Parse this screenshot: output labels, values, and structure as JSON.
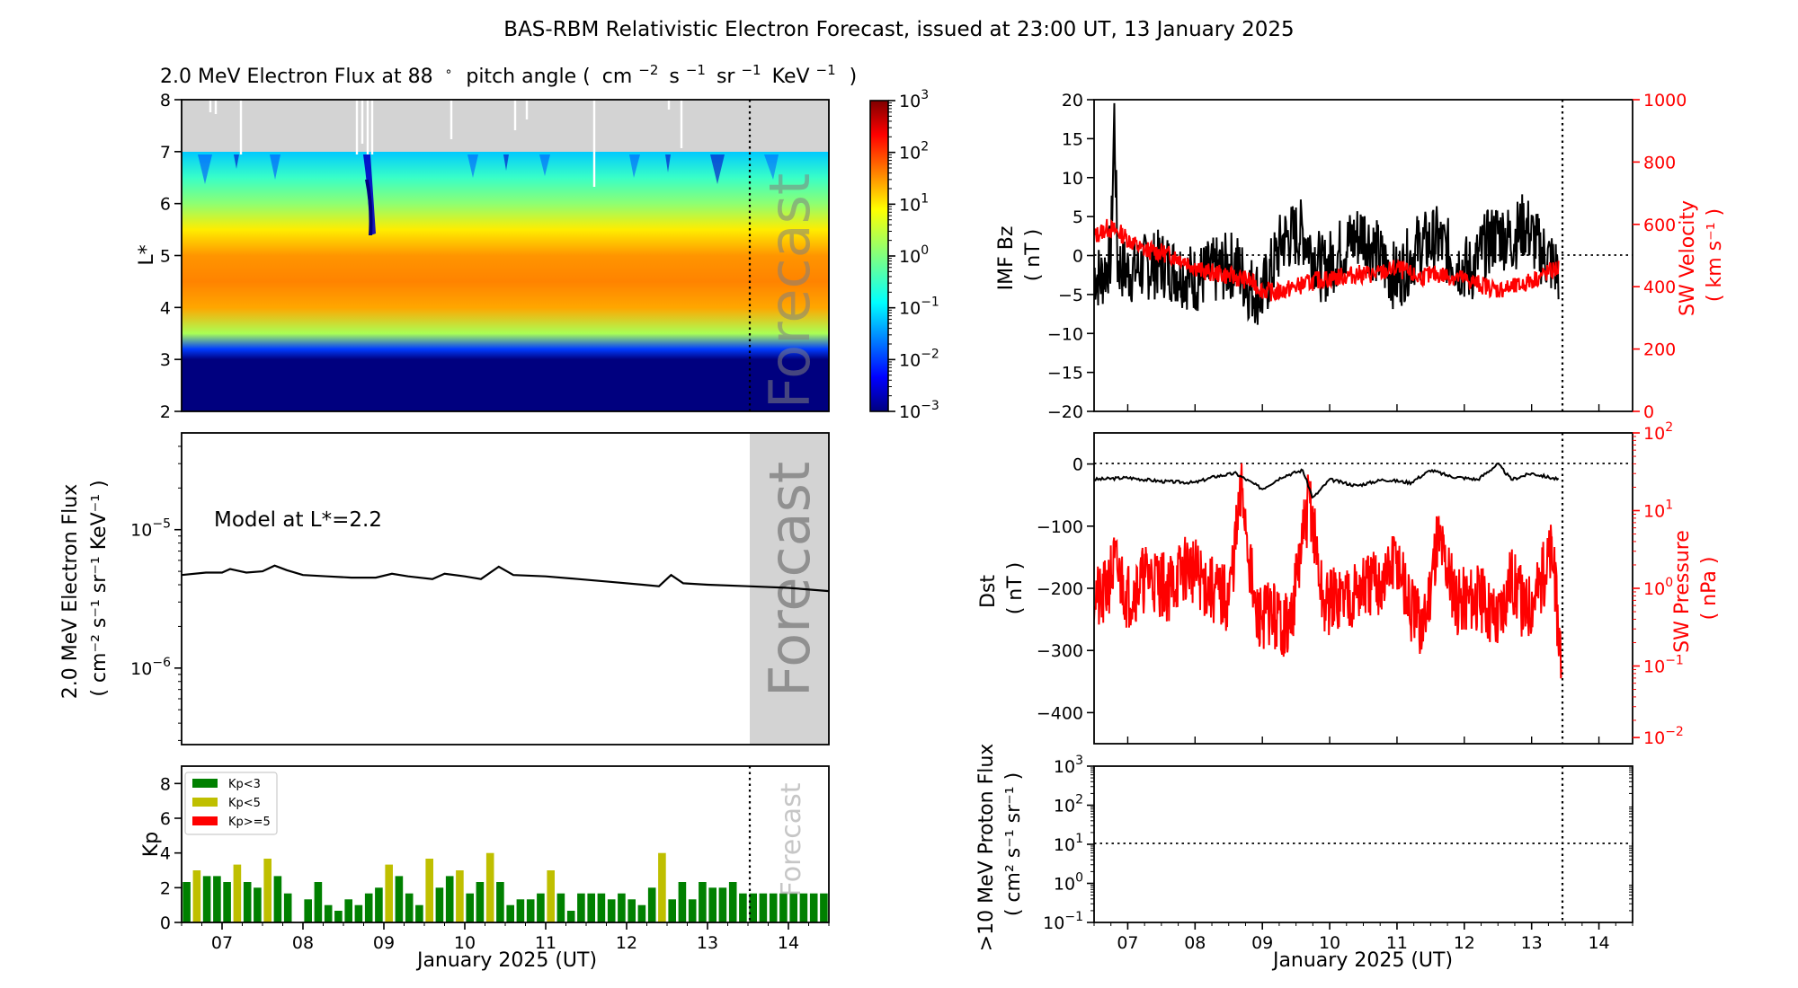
{
  "title": "BAS-RBM Relativistic Electron Forecast, issued at 23:00 UT, 13 January 2025",
  "colors": {
    "black": "#000000",
    "red": "#ff0000",
    "forecast_gray": "#d3d3d3",
    "kp_green": "#008000",
    "kp_yellow": "#bfbf00",
    "kp_red": "#ff0000"
  },
  "chart_data": [
    {
      "id": "flux-map",
      "type": "heatmap",
      "title_main": "2.0 MeV Electron Flux at 88",
      "title_deg": "∘",
      "title_units_parts": [
        "pitch angle (",
        "cm",
        "−2",
        "s",
        "−1",
        "sr",
        "−1",
        "KeV",
        "−1",
        ")"
      ],
      "ylabel": "L*",
      "ylim": [
        2,
        8
      ],
      "yticks": [
        "2",
        "3",
        "4",
        "5",
        "6",
        "7",
        "8"
      ],
      "forecast_label": "Forecast",
      "colorbar": {
        "scale": "log",
        "range": [
          0.001,
          1000
        ],
        "ticks": [
          {
            "base": "10",
            "exp": "−3"
          },
          {
            "base": "10",
            "exp": "−2"
          },
          {
            "base": "10",
            "exp": "−1"
          },
          {
            "base": "10",
            "exp": "0"
          },
          {
            "base": "10",
            "exp": "1"
          },
          {
            "base": "10",
            "exp": "2"
          },
          {
            "base": "10",
            "exp": "3"
          }
        ]
      },
      "profile_L": [
        2,
        3.0,
        3.2,
        3.5,
        4.0,
        4.5,
        5.0,
        5.5,
        6.0,
        6.5,
        7.0
      ],
      "profile_log10_flux": [
        -3,
        -3,
        -2,
        0.3,
        1.4,
        1.6,
        1.5,
        1.0,
        0.1,
        -0.5,
        -1.2
      ]
    },
    {
      "id": "model-flux",
      "type": "line",
      "ylabel_lines": [
        "2.0 MeV Electron Flux",
        "( cm⁻² s⁻¹ sr⁻¹ KeV⁻¹ )"
      ],
      "annotation": "Model at L*=2.2",
      "forecast_label": "Forecast",
      "yscale": "log",
      "ylim": [
        2.8e-07,
        5e-05
      ],
      "yticks": [
        {
          "base": "10",
          "exp": "−5"
        },
        {
          "base": "10",
          "exp": "−6"
        }
      ],
      "x": [
        6.5,
        6.8,
        7.0,
        7.1,
        7.3,
        7.5,
        7.65,
        7.8,
        8.0,
        8.3,
        8.6,
        8.9,
        9.1,
        9.3,
        9.6,
        9.75,
        10.0,
        10.2,
        10.42,
        10.6,
        11.0,
        11.4,
        11.8,
        12.2,
        12.4,
        12.55,
        12.7,
        13.0,
        13.5,
        14.0,
        14.5
      ],
      "y": [
        4.7e-06,
        4.9e-06,
        4.9e-06,
        5.2e-06,
        4.9e-06,
        5e-06,
        5.5e-06,
        5.1e-06,
        4.7e-06,
        4.6e-06,
        4.5e-06,
        4.5e-06,
        4.8e-06,
        4.6e-06,
        4.4e-06,
        4.8e-06,
        4.6e-06,
        4.4e-06,
        5.4e-06,
        4.7e-06,
        4.6e-06,
        4.4e-06,
        4.2e-06,
        4e-06,
        3.9e-06,
        4.7e-06,
        4.1e-06,
        4e-06,
        3.9e-06,
        3.8e-06,
        3.6e-06
      ]
    },
    {
      "id": "kp-index",
      "type": "bar",
      "ylabel": "Kp",
      "ylim": [
        0,
        9
      ],
      "yticks": [
        "0",
        "2",
        "4",
        "6",
        "8"
      ],
      "forecast_label": "Forecast",
      "legend": [
        "Kp<3",
        "Kp<5",
        "Kp>=5"
      ],
      "legend_position": "top-left",
      "xlabel": "January 2025 (UT)",
      "xticks": [
        "07",
        "08",
        "09",
        "10",
        "11",
        "12",
        "13",
        "14"
      ],
      "xlim": [
        6.5,
        14.5
      ],
      "forecast_start": 13.458,
      "values": [
        2.33,
        3.0,
        2.67,
        2.67,
        2.33,
        3.33,
        2.33,
        2.0,
        3.67,
        2.67,
        1.67,
        0,
        1.33,
        2.33,
        1.0,
        0.67,
        1.33,
        1.0,
        1.67,
        2.0,
        3.33,
        2.67,
        1.67,
        1.0,
        3.67,
        2.0,
        2.67,
        3.0,
        1.67,
        2.33,
        4.0,
        2.33,
        1.0,
        1.33,
        1.33,
        1.67,
        3.0,
        1.67,
        0.67,
        1.67,
        1.67,
        1.67,
        1.33,
        1.67,
        1.33,
        1.0,
        2.0,
        4.0,
        1.33,
        2.33,
        1.33,
        2.33,
        2.0,
        2.0,
        2.33,
        1.67,
        1.67,
        1.67,
        1.67,
        1.67,
        1.67,
        1.67,
        1.67,
        1.67
      ]
    },
    {
      "id": "imf-solarwind",
      "type": "line",
      "ylabel_lines": [
        "IMF Bz",
        "( nT )"
      ],
      "ylim": [
        -20,
        20
      ],
      "yticks": [
        "−20",
        "−15",
        "−10",
        "−5",
        "0",
        "5",
        "10",
        "15",
        "20"
      ],
      "y2label_lines": [
        "SW Velocity",
        "( km s⁻¹ )"
      ],
      "y2lim": [
        0,
        1000
      ],
      "y2ticks": [
        "0",
        "200",
        "400",
        "600",
        "800",
        "1000"
      ],
      "series": [
        {
          "name": "IMF Bz",
          "color": "#000000",
          "x": [
            6.5,
            6.6,
            6.75,
            6.8,
            6.85,
            7.0,
            7.5,
            8.0,
            8.3,
            8.6,
            8.8,
            9.0,
            9.3,
            9.6,
            9.9,
            10.2,
            10.5,
            10.8,
            11.0,
            11.3,
            11.6,
            11.9,
            12.1,
            12.3,
            12.5,
            12.7,
            12.9,
            13.1,
            13.4
          ],
          "y": [
            -2,
            -3,
            0,
            18,
            -1,
            -2,
            -1,
            -3,
            -2,
            -1,
            -4,
            -5,
            2,
            3,
            -2,
            1,
            3,
            -1,
            -3,
            1,
            2,
            -1,
            -2,
            1,
            3,
            2,
            4,
            1,
            -2
          ]
        },
        {
          "name": "SW Velocity",
          "color": "#ff0000",
          "x": [
            6.5,
            6.7,
            6.9,
            7.2,
            7.5,
            7.8,
            8.1,
            8.4,
            8.6,
            8.8,
            9.0,
            9.2,
            9.5,
            9.8,
            10.1,
            10.4,
            10.7,
            11.0,
            11.3,
            11.6,
            11.9,
            12.2,
            12.5,
            12.8,
            13.1,
            13.4
          ],
          "y": [
            560,
            590,
            570,
            520,
            510,
            490,
            450,
            440,
            430,
            420,
            390,
            380,
            400,
            420,
            430,
            440,
            440,
            460,
            430,
            440,
            430,
            410,
            390,
            400,
            430,
            460
          ]
        }
      ]
    },
    {
      "id": "dst-pressure",
      "type": "line",
      "ylabel_lines": [
        "Dst",
        "( nT )"
      ],
      "ylim": [
        -450,
        50
      ],
      "yticks": [
        "0",
        "−100",
        "−200",
        "−300",
        "−400"
      ],
      "y2label_lines": [
        "SW Pressure",
        "( nPa )"
      ],
      "y2scale": "log",
      "y2lim": [
        0.01,
        100
      ],
      "y2ticks": [
        {
          "base": "10",
          "exp": "−2"
        },
        {
          "base": "10",
          "exp": "−1"
        },
        {
          "base": "10",
          "exp": "0"
        },
        {
          "base": "10",
          "exp": "1"
        },
        {
          "base": "10",
          "exp": "2"
        }
      ],
      "series": [
        {
          "name": "Dst",
          "color": "#000000",
          "x": [
            6.5,
            7.0,
            7.5,
            8.0,
            8.3,
            8.6,
            9.0,
            9.3,
            9.6,
            9.75,
            10.0,
            10.4,
            10.8,
            11.2,
            11.5,
            11.8,
            12.2,
            12.5,
            12.7,
            13.0,
            13.4
          ],
          "y": [
            -25,
            -22,
            -28,
            -30,
            -20,
            -15,
            -40,
            -20,
            -10,
            -55,
            -25,
            -35,
            -25,
            -30,
            -10,
            -20,
            -25,
            0,
            -25,
            -15,
            -25
          ]
        },
        {
          "name": "SW Pressure",
          "color": "#ff0000",
          "x": [
            6.5,
            6.6,
            6.8,
            7.0,
            7.3,
            7.6,
            7.9,
            8.2,
            8.5,
            8.7,
            8.9,
            9.1,
            9.4,
            9.7,
            9.9,
            10.2,
            10.5,
            10.8,
            11.0,
            11.2,
            11.4,
            11.6,
            11.9,
            12.2,
            12.5,
            12.7,
            12.9,
            13.1,
            13.3,
            13.45
          ],
          "y": [
            1.0,
            0.6,
            2.0,
            0.8,
            1.5,
            1.0,
            2.0,
            1.0,
            0.7,
            20,
            0.4,
            0.5,
            0.3,
            15,
            0.6,
            0.8,
            1.0,
            1.2,
            2.5,
            0.5,
            0.3,
            5,
            0.7,
            0.8,
            0.4,
            1.5,
            0.5,
            1.0,
            3.0,
            0.1
          ]
        }
      ]
    },
    {
      "id": "proton-flux",
      "type": "line",
      "ylabel_lines": [
        ">10 MeV Proton Flux",
        "( cm² s⁻¹ sr⁻¹ )"
      ],
      "yscale": "log",
      "ylim": [
        0.1,
        1000
      ],
      "yticks": [
        {
          "base": "10",
          "exp": "−1"
        },
        {
          "base": "10",
          "exp": "0"
        },
        {
          "base": "10",
          "exp": "1"
        },
        {
          "base": "10",
          "exp": "2"
        },
        {
          "base": "10",
          "exp": "3"
        }
      ],
      "threshold": 10,
      "xlabel": "January 2025 (UT)",
      "xticks": [
        "07",
        "08",
        "09",
        "10",
        "11",
        "12",
        "13",
        "14"
      ],
      "xlim": [
        6.5,
        14.5
      ],
      "forecast_start": 13.458
    }
  ]
}
